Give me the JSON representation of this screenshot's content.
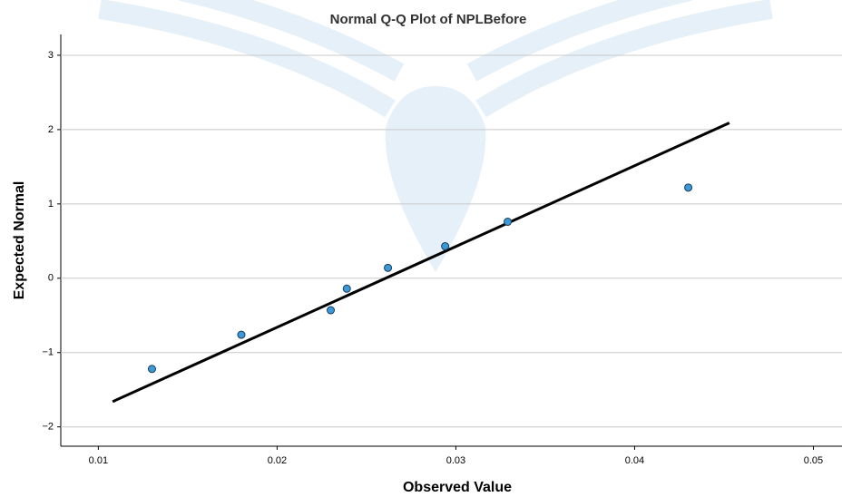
{
  "chart_data": {
    "type": "scatter",
    "title": "Normal Q-Q Plot of NPLBefore",
    "x_label": "Observed Value",
    "y_label": "Expected Normal",
    "x": [
      0.013,
      0.018,
      0.023,
      0.0239,
      0.0262,
      0.0294,
      0.0329,
      0.043
    ],
    "values": [
      -1.22,
      -0.76,
      -0.43,
      -0.14,
      0.14,
      0.43,
      0.76,
      1.22
    ],
    "color": "#3a9ad9",
    "fit_line": {
      "x": [
        0.0108,
        0.0453
      ],
      "y": [
        -1.66,
        2.09
      ],
      "color": "#000000"
    },
    "xlim": [
      0.0079,
      0.0516
    ],
    "ylim": [
      -2.26,
      3.28
    ],
    "xticks": [
      0.01,
      0.02,
      0.03,
      0.04,
      0.05
    ],
    "yticks": [
      {
        "value": -2,
        "label": "−2"
      },
      {
        "value": -1,
        "label": "−1"
      },
      0,
      1,
      2,
      3
    ],
    "grid": true
  }
}
